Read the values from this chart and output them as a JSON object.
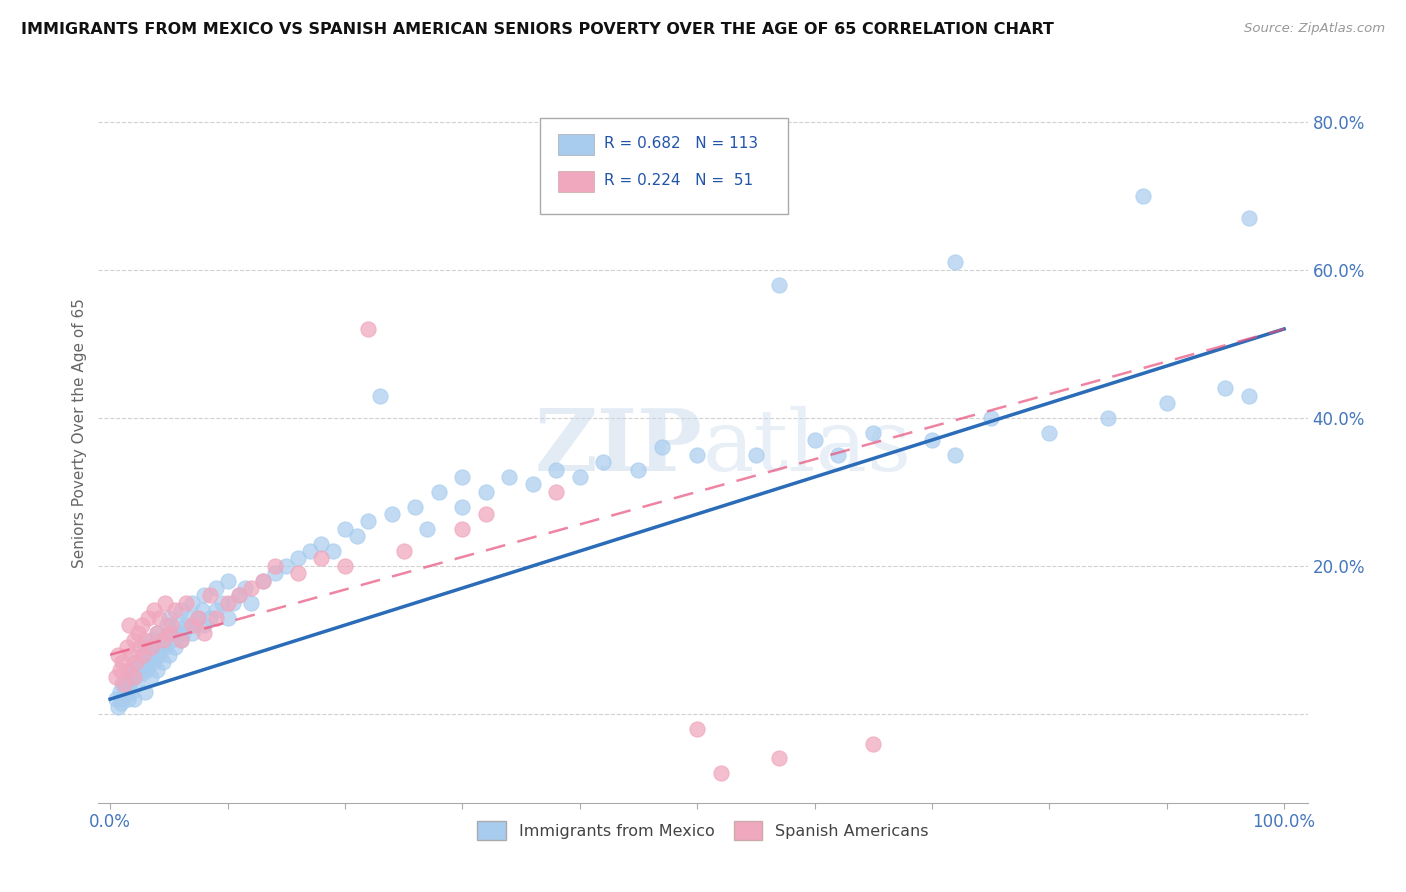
{
  "title": "IMMIGRANTS FROM MEXICO VS SPANISH AMERICAN SENIORS POVERTY OVER THE AGE OF 65 CORRELATION CHART",
  "source": "Source: ZipAtlas.com",
  "ylabel": "Seniors Poverty Over the Age of 65",
  "blue_R": 0.682,
  "blue_N": 113,
  "pink_R": 0.224,
  "pink_N": 51,
  "blue_color": "#A8CCEE",
  "pink_color": "#F0A8BE",
  "blue_line_color": "#2B6CB8",
  "pink_line_color": "#E8507A",
  "pink_line_dash_color": "#D08090",
  "watermark_zip": "ZIP",
  "watermark_atlas": "atlas",
  "blue_trend_x0": 0.0,
  "blue_trend_y0": 0.02,
  "blue_trend_x1": 1.0,
  "blue_trend_y1": 0.52,
  "pink_trend_x0": 0.0,
  "pink_trend_y0": 0.08,
  "pink_trend_x1": 1.0,
  "pink_trend_y1": 0.52,
  "xlim_min": -0.01,
  "xlim_max": 1.02,
  "ylim_min": -0.12,
  "ylim_max": 0.88,
  "blue_scatter_x": [
    0.005,
    0.007,
    0.008,
    0.009,
    0.01,
    0.01,
    0.012,
    0.013,
    0.014,
    0.015,
    0.015,
    0.016,
    0.017,
    0.018,
    0.019,
    0.02,
    0.02,
    0.021,
    0.022,
    0.023,
    0.024,
    0.025,
    0.026,
    0.027,
    0.028,
    0.03,
    0.03,
    0.031,
    0.032,
    0.033,
    0.035,
    0.036,
    0.037,
    0.038,
    0.04,
    0.04,
    0.042,
    0.043,
    0.044,
    0.045,
    0.047,
    0.048,
    0.05,
    0.05,
    0.052,
    0.054,
    0.055,
    0.057,
    0.06,
    0.06,
    0.062,
    0.065,
    0.067,
    0.07,
    0.07,
    0.072,
    0.075,
    0.078,
    0.08,
    0.08,
    0.085,
    0.09,
    0.09,
    0.095,
    0.1,
    0.1,
    0.105,
    0.11,
    0.115,
    0.12,
    0.13,
    0.14,
    0.15,
    0.16,
    0.17,
    0.18,
    0.19,
    0.2,
    0.21,
    0.22,
    0.24,
    0.26,
    0.27,
    0.28,
    0.3,
    0.32,
    0.34,
    0.36,
    0.38,
    0.4,
    0.42,
    0.45,
    0.47,
    0.5,
    0.55,
    0.6,
    0.62,
    0.65,
    0.7,
    0.72,
    0.75,
    0.8,
    0.85,
    0.9,
    0.95,
    0.97,
    0.45,
    0.57,
    0.72,
    0.88,
    0.97,
    0.23,
    0.3
  ],
  "blue_scatter_y": [
    0.02,
    0.01,
    0.03,
    0.015,
    0.02,
    0.04,
    0.025,
    0.03,
    0.035,
    0.02,
    0.05,
    0.04,
    0.045,
    0.03,
    0.06,
    0.02,
    0.07,
    0.05,
    0.055,
    0.04,
    0.065,
    0.06,
    0.07,
    0.055,
    0.08,
    0.03,
    0.09,
    0.06,
    0.07,
    0.08,
    0.05,
    0.1,
    0.07,
    0.08,
    0.06,
    0.11,
    0.08,
    0.09,
    0.1,
    0.07,
    0.09,
    0.12,
    0.08,
    0.13,
    0.1,
    0.11,
    0.09,
    0.12,
    0.1,
    0.14,
    0.11,
    0.12,
    0.13,
    0.11,
    0.15,
    0.12,
    0.13,
    0.14,
    0.12,
    0.16,
    0.13,
    0.14,
    0.17,
    0.15,
    0.13,
    0.18,
    0.15,
    0.16,
    0.17,
    0.15,
    0.18,
    0.19,
    0.2,
    0.21,
    0.22,
    0.23,
    0.22,
    0.25,
    0.24,
    0.26,
    0.27,
    0.28,
    0.25,
    0.3,
    0.28,
    0.3,
    0.32,
    0.31,
    0.33,
    0.32,
    0.34,
    0.33,
    0.36,
    0.35,
    0.35,
    0.37,
    0.35,
    0.38,
    0.37,
    0.35,
    0.4,
    0.38,
    0.4,
    0.42,
    0.44,
    0.43,
    0.72,
    0.58,
    0.61,
    0.7,
    0.67,
    0.43,
    0.32
  ],
  "pink_scatter_x": [
    0.005,
    0.007,
    0.008,
    0.01,
    0.012,
    0.014,
    0.015,
    0.016,
    0.018,
    0.02,
    0.02,
    0.022,
    0.024,
    0.025,
    0.027,
    0.028,
    0.03,
    0.032,
    0.035,
    0.037,
    0.04,
    0.042,
    0.045,
    0.047,
    0.05,
    0.052,
    0.055,
    0.06,
    0.065,
    0.07,
    0.075,
    0.08,
    0.085,
    0.09,
    0.1,
    0.11,
    0.12,
    0.13,
    0.14,
    0.16,
    0.18,
    0.2,
    0.25,
    0.3,
    0.32,
    0.38,
    0.5,
    0.52,
    0.57,
    0.65,
    0.22
  ],
  "pink_scatter_y": [
    0.05,
    0.08,
    0.06,
    0.07,
    0.04,
    0.09,
    0.06,
    0.12,
    0.08,
    0.05,
    0.1,
    0.07,
    0.11,
    0.09,
    0.12,
    0.08,
    0.1,
    0.13,
    0.09,
    0.14,
    0.11,
    0.13,
    0.1,
    0.15,
    0.11,
    0.12,
    0.14,
    0.1,
    0.15,
    0.12,
    0.13,
    0.11,
    0.16,
    0.13,
    0.15,
    0.16,
    0.17,
    0.18,
    0.2,
    0.19,
    0.21,
    0.2,
    0.22,
    0.25,
    0.27,
    0.3,
    -0.02,
    -0.08,
    -0.06,
    -0.04,
    0.52
  ]
}
